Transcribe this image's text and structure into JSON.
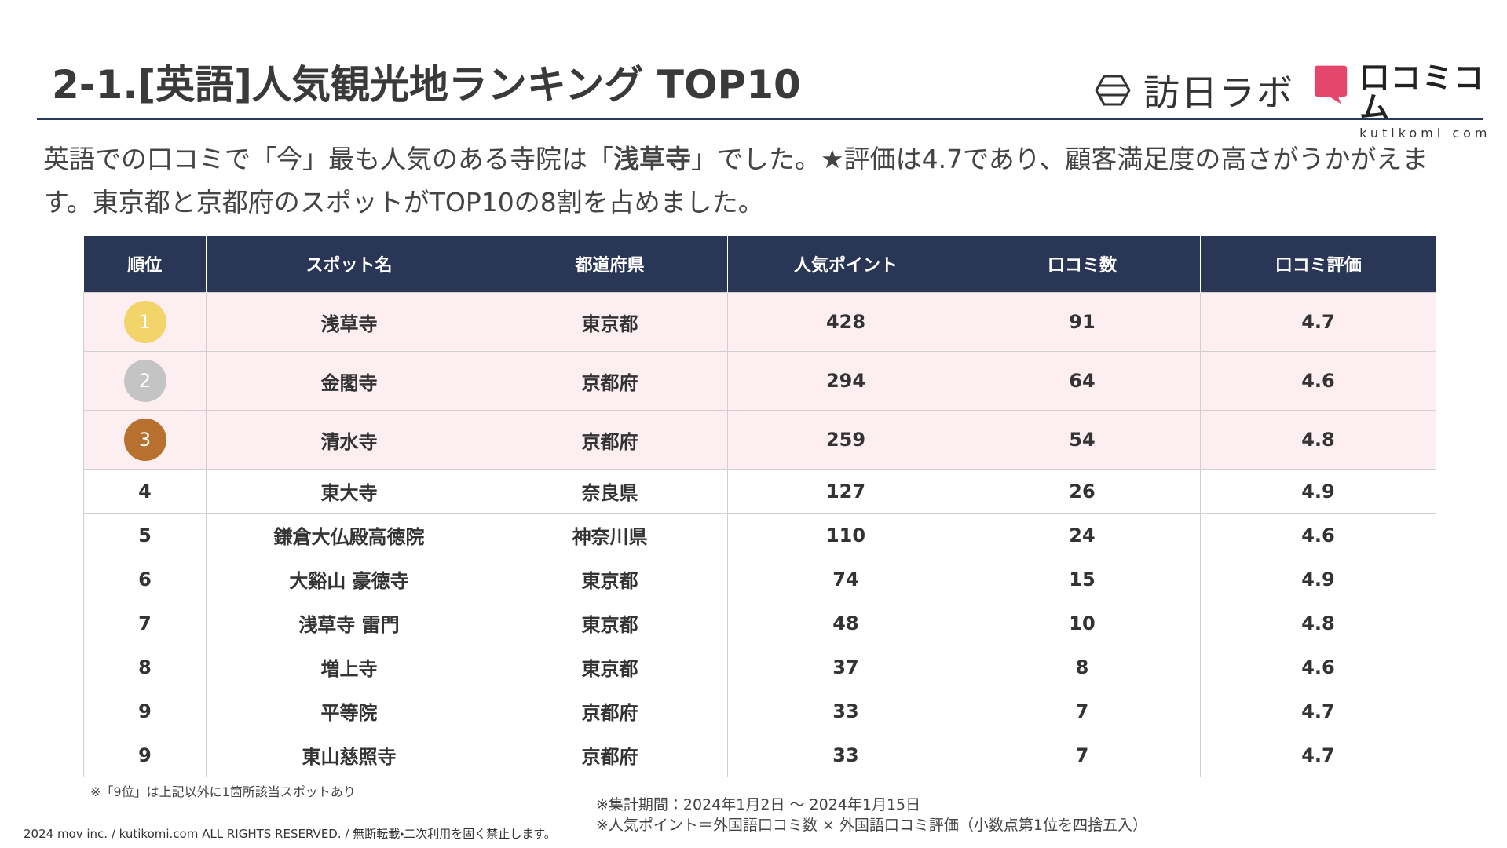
{
  "header": {
    "title": "2-1.[英語]人気観光地ランキング TOP10",
    "logo_left": "訪日ラボ",
    "logo_right": "口コミコム",
    "logo_right_sub": "kutikomi com"
  },
  "description": [
    "英語での口コミで「今」最も人気のある寺院は「",
    "浅草寺",
    "」でした。★評価は4.7であり、顧客満足度の高さがうかがえます。東京都と京都府のスポットがTOP10の8割を占めました。"
  ],
  "table": {
    "headers": [
      "順位",
      "スポット名",
      "都道府県",
      "人気ポイント",
      "口コミ数",
      "口コミ評価"
    ],
    "rows": [
      [
        "1",
        "浅草寺",
        "東京都",
        "428",
        "91",
        "4.7"
      ],
      [
        "2",
        "金閣寺",
        "京都府",
        "294",
        "64",
        "4.6"
      ],
      [
        "3",
        "清水寺",
        "京都府",
        "259",
        "54",
        "4.8"
      ],
      [
        "4",
        "東大寺",
        "奈良県",
        "127",
        "26",
        "4.9"
      ],
      [
        "5",
        "鎌倉大仏殿高徳院",
        "神奈川県",
        "110",
        "24",
        "4.6"
      ],
      [
        "6",
        "大谿山 豪徳寺",
        "東京都",
        "74",
        "15",
        "4.9"
      ],
      [
        "7",
        "浅草寺 雷門",
        "東京都",
        "48",
        "10",
        "4.8"
      ],
      [
        "8",
        "増上寺",
        "東京都",
        "37",
        "8",
        "4.6"
      ],
      [
        "9",
        "平等院",
        "京都府",
        "33",
        "7",
        "4.7"
      ],
      [
        "9",
        "東山慈照寺",
        "京都府",
        "33",
        "7",
        "4.7"
      ]
    ]
  },
  "footnote": "※「9位」は上記以外に1箇所該当スポットあり",
  "notes": [
    "※集計期間：2024年1月2日 ～ 2024年1月15日",
    "※人気ポイント＝外国語口コミ数 × 外国語口コミ評価（小数点第1位を四捨五入）"
  ],
  "copyright": "2024 mov inc. / kutikomi.com ALL RIGHTS RESERVED. / 無断転載・二次利用を固く禁止します。"
}
